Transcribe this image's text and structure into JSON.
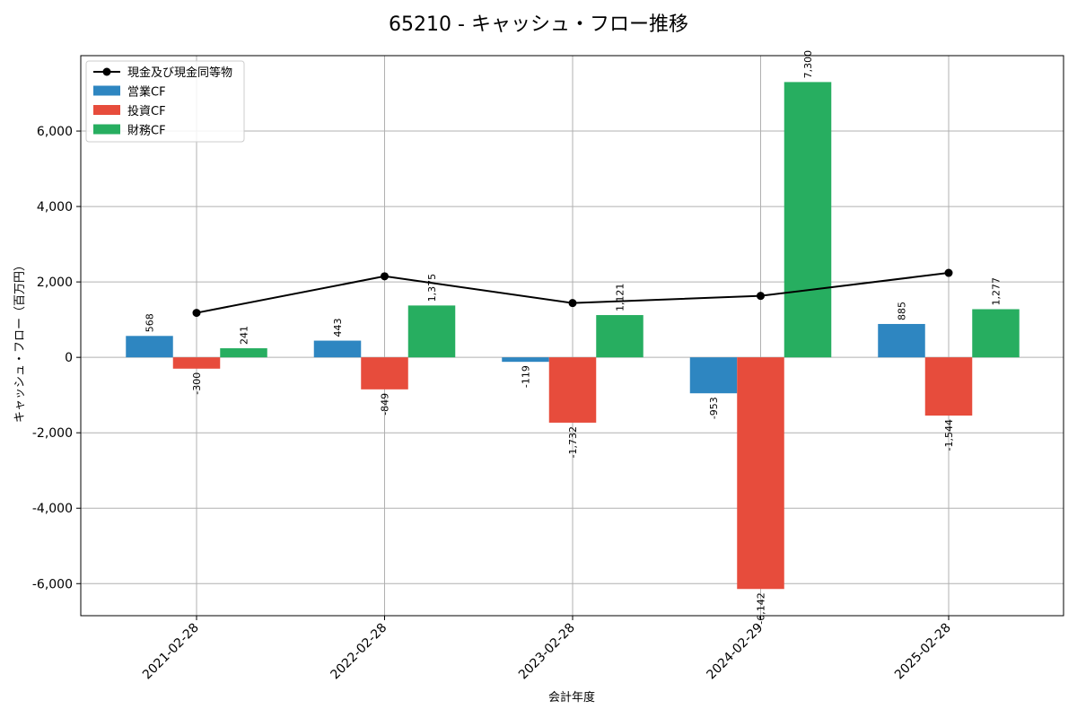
{
  "chart_data": {
    "type": "bar",
    "title": "65210 - キャッシュ・フロー推移",
    "xlabel": "会計年度",
    "ylabel": "キャッシュ・フロー（百万円）",
    "categories": [
      "2021-02-28",
      "2022-02-28",
      "2023-02-28",
      "2024-02-29",
      "2025-02-28"
    ],
    "series": [
      {
        "name": "営業CF",
        "color": "#2e86c1",
        "values": [
          568,
          443,
          -119,
          -953,
          885
        ],
        "labels": [
          "568",
          "443",
          "-119",
          "-953",
          "885"
        ]
      },
      {
        "name": "投資CF",
        "color": "#e74c3c",
        "values": [
          -300,
          -849,
          -1732,
          -6142,
          -1544
        ],
        "labels": [
          "-300",
          "-849",
          "-1,732",
          "-6,142",
          "-1,544"
        ]
      },
      {
        "name": "財務CF",
        "color": "#27ae60",
        "values": [
          241,
          1375,
          1121,
          7300,
          1277
        ],
        "labels": [
          "241",
          "1,375",
          "1,121",
          "7,300",
          "1,277"
        ]
      }
    ],
    "line_series": {
      "name": "現金及び現金同等物",
      "color": "#000000",
      "values": [
        1180,
        2150,
        1440,
        1630,
        2240
      ]
    },
    "ylim": [
      -6850,
      8000
    ],
    "yticks": [
      -6000,
      -4000,
      -2000,
      0,
      2000,
      4000,
      6000
    ],
    "ytick_labels": [
      "-6,000",
      "-4,000",
      "-2,000",
      "0",
      "2,000",
      "4,000",
      "6,000"
    ],
    "grid": true,
    "legend_position": "top-left"
  }
}
